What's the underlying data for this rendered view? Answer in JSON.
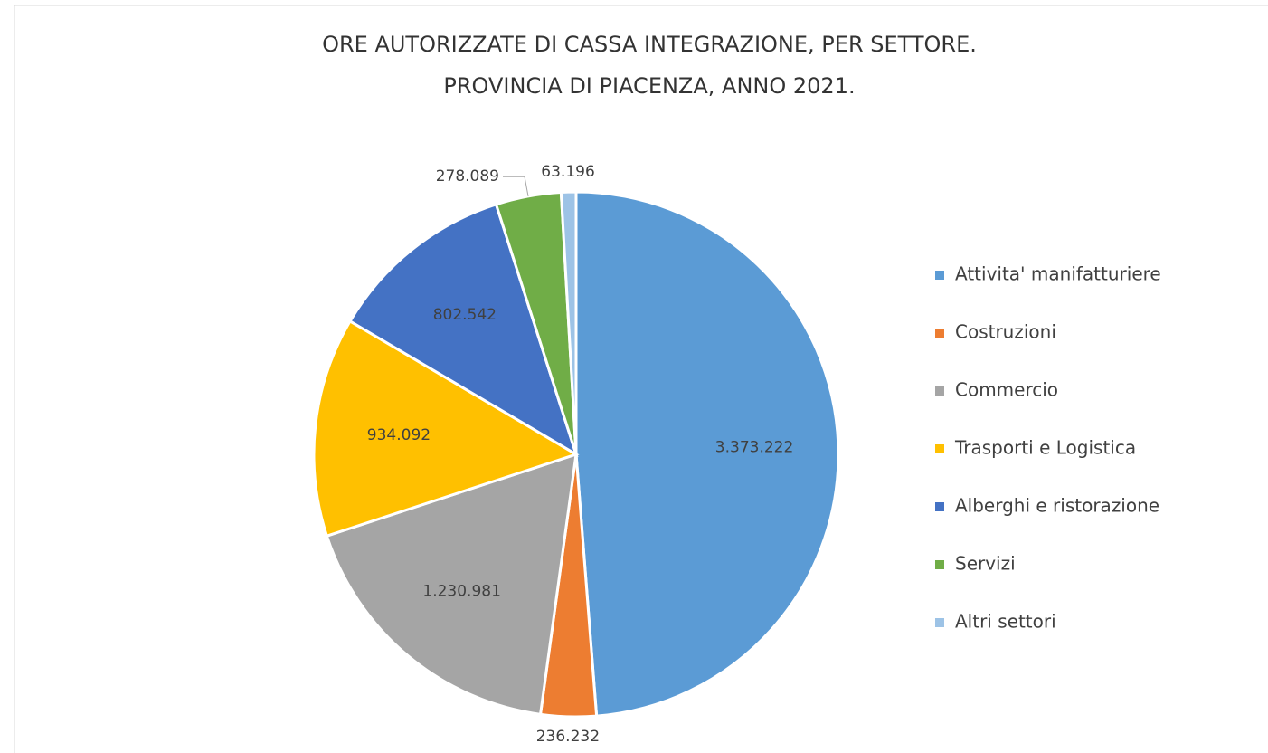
{
  "chart_data": {
    "type": "pie",
    "title": "ORE AUTORIZZATE DI CASSA INTEGRAZIONE, PER SETTORE.",
    "subtitle": "PROVINCIA DI PIACENZA, ANNO 2021.",
    "categories": [
      "Attivita' manifatturiere",
      "Costruzioni",
      "Commercio",
      "Trasporti e Logistica",
      "Alberghi e ristorazione",
      "Servizi",
      "Altri settori"
    ],
    "values": [
      3373222,
      236232,
      1230981,
      934092,
      802542,
      278089,
      63196
    ],
    "value_labels": [
      "3.373.222",
      "236.232",
      "1.230.981",
      "934.092",
      "802.542",
      "278.089",
      "63.196"
    ],
    "colors": [
      "#5b9bd5",
      "#ed7d31",
      "#a5a5a5",
      "#ffc000",
      "#4472c4",
      "#70ad47",
      "#9dc3e6"
    ],
    "legend": "right"
  }
}
